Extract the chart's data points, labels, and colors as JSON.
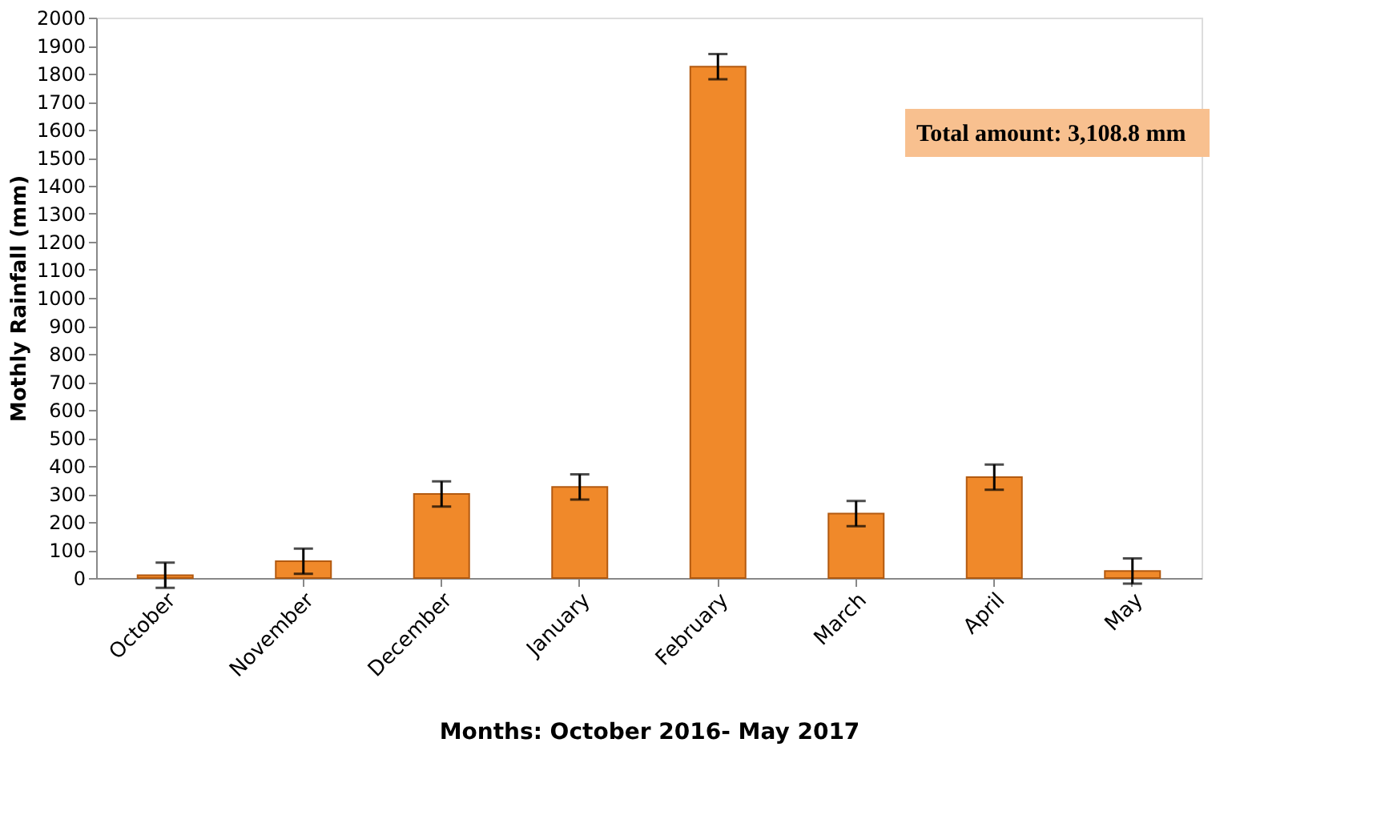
{
  "chart_data": {
    "type": "bar",
    "xlabel": "Months: October 2016- May 2017",
    "ylabel": "Mothly Rainfall (mm)",
    "categories": [
      "October",
      "November",
      "December",
      "January",
      "February",
      "March",
      "April",
      "May"
    ],
    "values": [
      10,
      60,
      300,
      325,
      1825,
      230,
      360,
      25
    ],
    "errors": [
      45,
      45,
      45,
      45,
      45,
      45,
      45,
      45
    ],
    "color": "#f0892a",
    "ylim": [
      0,
      2000
    ],
    "yticks": [
      0,
      100,
      200,
      300,
      400,
      500,
      600,
      700,
      800,
      900,
      1000,
      1100,
      1200,
      1300,
      1400,
      1500,
      1600,
      1700,
      1800,
      1900,
      2000
    ],
    "grid": false,
    "annotations": [
      "Total amount: 3,108.8 mm"
    ]
  }
}
